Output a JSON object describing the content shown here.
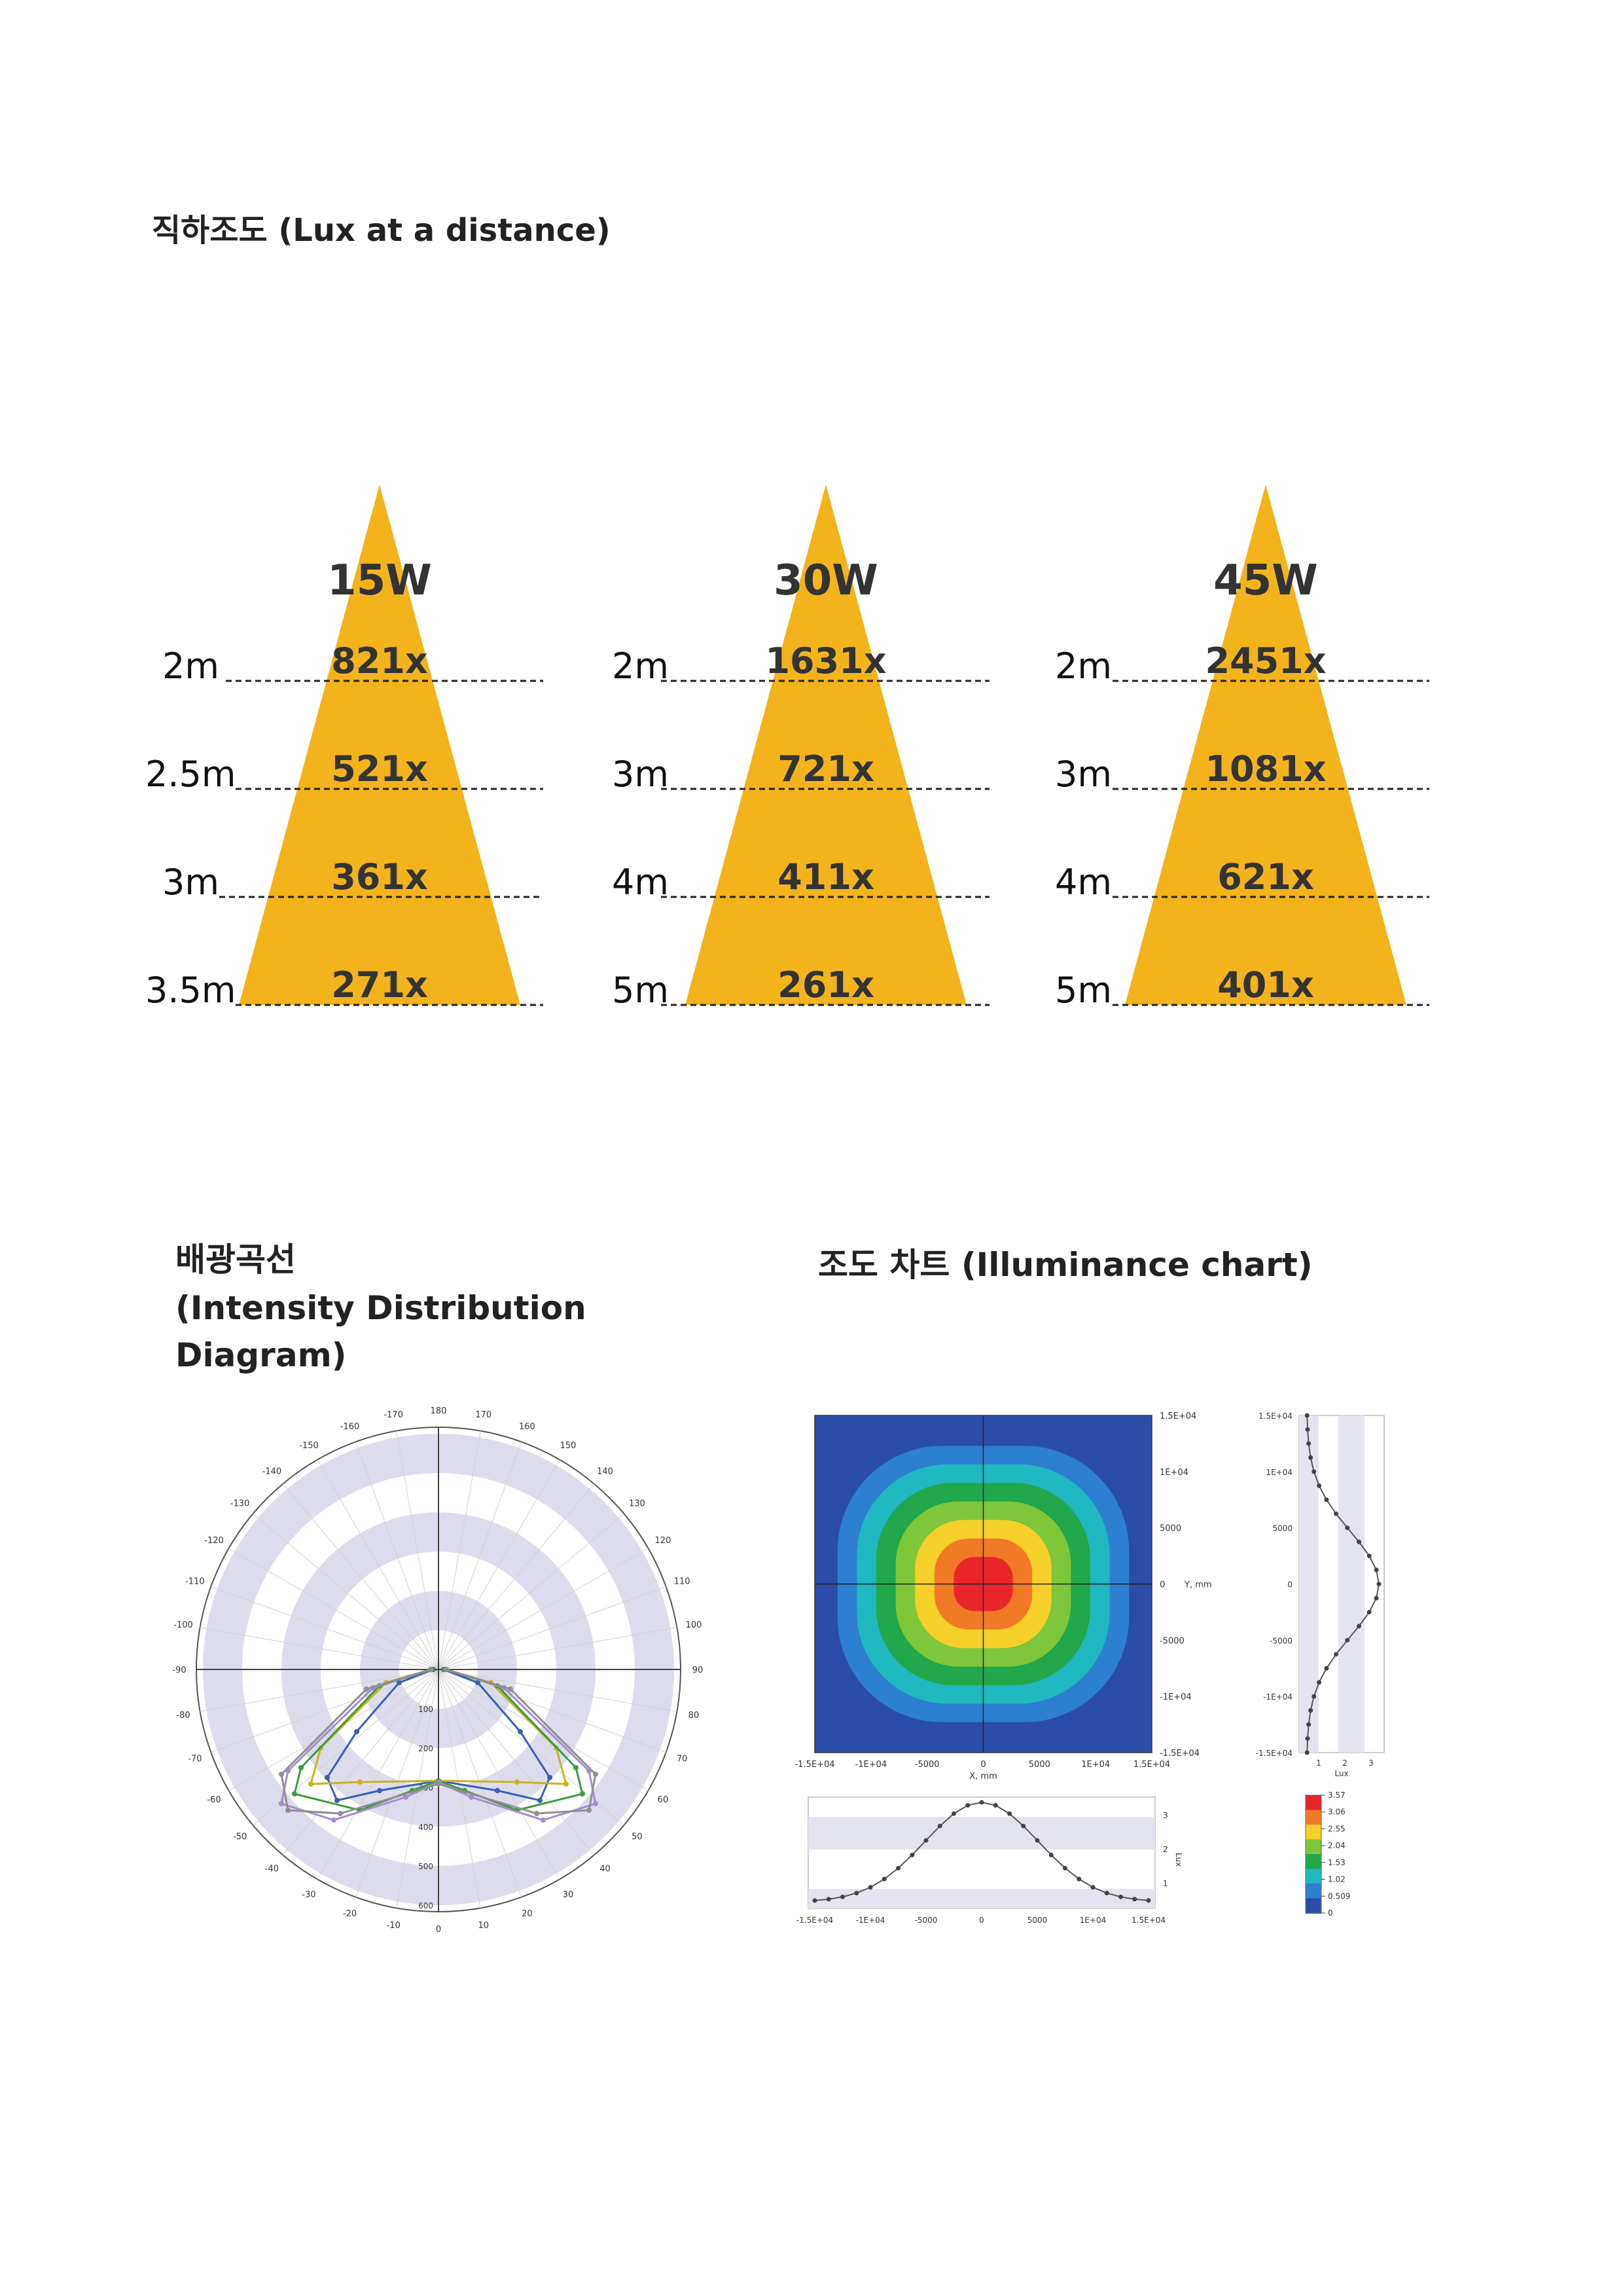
{
  "lux_section": {
    "title": "직하조도 (Lux at a distance)",
    "cones": [
      {
        "watt": "15W",
        "rows": [
          {
            "dist": "2m",
            "lux": "821x"
          },
          {
            "dist": "2.5m",
            "lux": "521x"
          },
          {
            "dist": "3m",
            "lux": "361x"
          },
          {
            "dist": "3.5m",
            "lux": "271x"
          }
        ]
      },
      {
        "watt": "30W",
        "rows": [
          {
            "dist": "2m",
            "lux": "1631x"
          },
          {
            "dist": "3m",
            "lux": "721x"
          },
          {
            "dist": "4m",
            "lux": "411x"
          },
          {
            "dist": "5m",
            "lux": "261x"
          }
        ]
      },
      {
        "watt": "45W",
        "rows": [
          {
            "dist": "2m",
            "lux": "2451x"
          },
          {
            "dist": "3m",
            "lux": "1081x"
          },
          {
            "dist": "4m",
            "lux": "621x"
          },
          {
            "dist": "5m",
            "lux": "401x"
          }
        ]
      }
    ],
    "cone_color": "#f3b31c"
  },
  "intensity_section": {
    "title_ko": "배광곡선",
    "title_en_1": "(Intensity Distribution",
    "title_en_2": " Diagram)",
    "angle_labels": [
      "180",
      "170",
      "160",
      "150",
      "140",
      "130",
      "120",
      "110",
      "100",
      "90",
      "80",
      "70",
      "60",
      "50",
      "40",
      "30",
      "20",
      "10",
      "0",
      "-10",
      "-20",
      "-30",
      "-40",
      "-50",
      "-60",
      "-70",
      "-80",
      "-90",
      "-100",
      "-110",
      "-120",
      "-130",
      "-140",
      "-150",
      "-160",
      "-170"
    ],
    "radial_labels": [
      "100",
      "200",
      "300",
      "400",
      "500",
      "600"
    ]
  },
  "illuminance_section": {
    "title": "조도 차트 (Illuminance chart)",
    "y_ticks": [
      "1.5E+04",
      "1E+04",
      "5000",
      "0",
      "-5000",
      "-1E+04",
      "-1.5E+04"
    ],
    "x_ticks": [
      "-1.5E+04",
      "-1E+04",
      "-5000",
      "0",
      "5000",
      "1E+04",
      "1.5E+04"
    ],
    "x_axis_label": "X, mm",
    "y_axis_label": "Y, mm",
    "side_x_ticks": [
      "1",
      "2",
      "3"
    ],
    "side_axis_label": "Lux",
    "bottom_y_ticks": [
      "3",
      "2",
      "1"
    ],
    "bottom_axis_label": "Lux",
    "legend_values": [
      "3.57",
      "3.06",
      "2.55",
      "2.04",
      "1.53",
      "1.02",
      "0.509",
      "0"
    ],
    "legend_colors": [
      "#e8262a",
      "#f07a25",
      "#f5d02a",
      "#7ec63a",
      "#20a84a",
      "#1fb7c0",
      "#2d7fd0",
      "#2a4ea8"
    ]
  }
}
